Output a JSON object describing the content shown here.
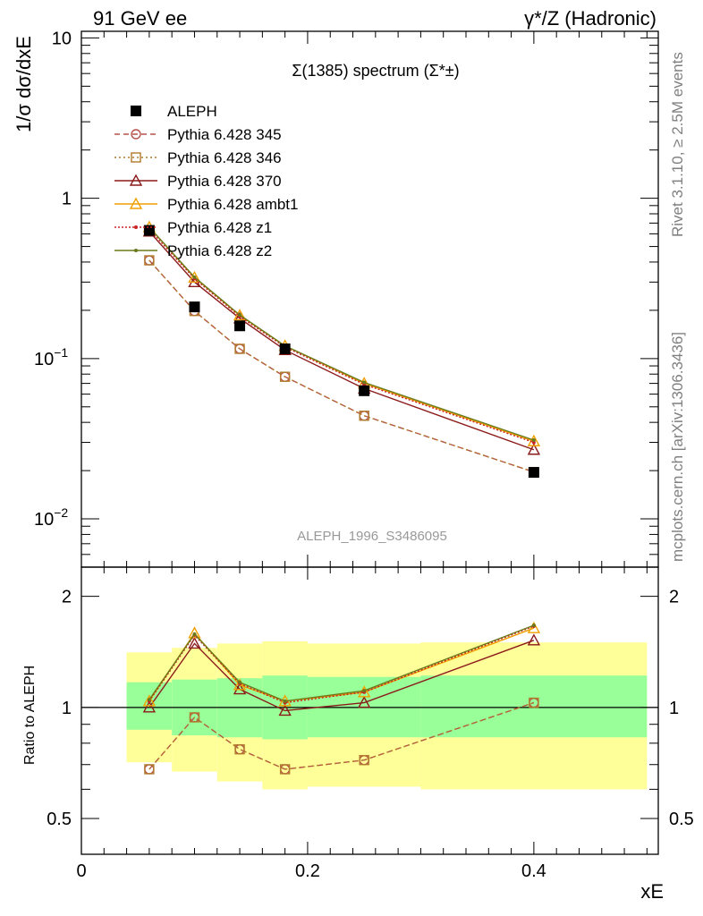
{
  "header": {
    "left": "91 GeV ee",
    "right": "γ*/Z (Hadronic)"
  },
  "side_labels": {
    "rivet": "Rivet 3.1.10, ≥ 2.5M events",
    "site": "mcplots.cern.ch [arXiv:1306.3436]"
  },
  "chart_data": [
    {
      "type": "line",
      "title": "Σ(1385) spectrum (Σ*±)",
      "watermark": "ALEPH_1996_S3486095",
      "ylabel": "1/σ dσ/dxE",
      "yscale": "log",
      "ylim": [
        0.005,
        11
      ],
      "xlim": [
        0,
        0.51
      ],
      "yticks": [
        {
          "v": 10,
          "t": "10"
        },
        {
          "v": 1,
          "t": "1"
        },
        {
          "v": 0.1,
          "t": "10",
          "sup": "−1"
        },
        {
          "v": 0.01,
          "t": "10",
          "sup": "−2"
        }
      ],
      "legend_position": "top-left",
      "data": {
        "name": "ALEPH",
        "x": [
          0.06,
          0.1,
          0.14,
          0.18,
          0.25,
          0.4
        ],
        "y": [
          0.63,
          0.21,
          0.16,
          0.115,
          0.063,
          0.0195
        ]
      },
      "series": [
        {
          "name": "Pythia 6.428 345",
          "color": "#b5524c",
          "dash": "6,4",
          "marker": "circle",
          "x": [
            0.06,
            0.1,
            0.14,
            0.18,
            0.25,
            0.4
          ],
          "y": [
            0.41,
            0.198,
            0.115,
            0.077,
            0.044,
            0.0196
          ]
        },
        {
          "name": "Pythia 6.428 346",
          "color": "#b07a2a",
          "dash": "2,3",
          "marker": "square",
          "x": [
            0.06,
            0.1,
            0.14,
            0.18,
            0.25,
            0.4
          ],
          "y": [
            0.41,
            0.198,
            0.115,
            0.077,
            0.044,
            0.0196
          ]
        },
        {
          "name": "Pythia 6.428 370",
          "color": "#8b1a1a",
          "dash": "",
          "marker": "triangle",
          "x": [
            0.06,
            0.1,
            0.14,
            0.18,
            0.25,
            0.4
          ],
          "y": [
            0.62,
            0.3,
            0.178,
            0.113,
            0.065,
            0.027
          ]
        },
        {
          "name": "Pythia 6.428 ambt1",
          "color": "#f0a000",
          "dash": "",
          "marker": "triangle",
          "x": [
            0.06,
            0.1,
            0.14,
            0.18,
            0.25,
            0.4
          ],
          "y": [
            0.66,
            0.32,
            0.186,
            0.12,
            0.07,
            0.0305
          ]
        },
        {
          "name": "Pythia 6.428 z1",
          "color": "#cc2222",
          "dash": "2,2",
          "marker": "dot",
          "x": [
            0.06,
            0.1,
            0.14,
            0.18,
            0.25,
            0.4
          ],
          "y": [
            0.64,
            0.315,
            0.183,
            0.118,
            0.069,
            0.03
          ]
        },
        {
          "name": "Pythia 6.428 z2",
          "color": "#6b7a1a",
          "dash": "",
          "marker": "dot",
          "x": [
            0.06,
            0.1,
            0.14,
            0.18,
            0.25,
            0.4
          ],
          "y": [
            0.66,
            0.322,
            0.187,
            0.12,
            0.071,
            0.031
          ]
        }
      ]
    },
    {
      "type": "line",
      "ylabel": "Ratio to ALEPH",
      "xlabel": "xE",
      "yscale": "log",
      "ylim": [
        0.4,
        2.4
      ],
      "xlim": [
        0,
        0.51
      ],
      "yticks": [
        {
          "v": 0.5,
          "t": "0.5"
        },
        {
          "v": 1,
          "t": "1"
        },
        {
          "v": 2,
          "t": "2"
        }
      ],
      "xticks": [
        {
          "v": 0,
          "t": "0"
        },
        {
          "v": 0.2,
          "t": "0.2"
        },
        {
          "v": 0.4,
          "t": "0.4"
        }
      ],
      "bands": {
        "edges": [
          0.04,
          0.08,
          0.12,
          0.16,
          0.2,
          0.3,
          0.5
        ],
        "yellow_lo": [
          0.71,
          0.67,
          0.63,
          0.6,
          0.61,
          0.6
        ],
        "yellow_hi": [
          1.41,
          1.45,
          1.49,
          1.51,
          1.49,
          1.5
        ],
        "green_lo": [
          0.87,
          0.84,
          0.83,
          0.82,
          0.83,
          0.83
        ],
        "green_hi": [
          1.17,
          1.19,
          1.2,
          1.22,
          1.21,
          1.22
        ]
      },
      "series": [
        {
          "name": "Pythia 6.428 345",
          "x": [
            0.06,
            0.1,
            0.14,
            0.18,
            0.25,
            0.4
          ],
          "y": [
            0.68,
            0.94,
            0.77,
            0.68,
            0.72,
            1.03
          ]
        },
        {
          "name": "Pythia 6.428 346",
          "x": [
            0.06,
            0.1,
            0.14,
            0.18,
            0.25,
            0.4
          ],
          "y": [
            0.68,
            0.94,
            0.77,
            0.68,
            0.72,
            1.03
          ]
        },
        {
          "name": "Pythia 6.428 370",
          "x": [
            0.06,
            0.1,
            0.14,
            0.18,
            0.25,
            0.4
          ],
          "y": [
            1.0,
            1.49,
            1.12,
            0.98,
            1.03,
            1.52
          ]
        },
        {
          "name": "Pythia 6.428 ambt1",
          "x": [
            0.06,
            0.1,
            0.14,
            0.18,
            0.25,
            0.4
          ],
          "y": [
            1.04,
            1.59,
            1.15,
            1.04,
            1.1,
            1.64
          ]
        },
        {
          "name": "Pythia 6.428 z1",
          "x": [
            0.06,
            0.1,
            0.14,
            0.18,
            0.25,
            0.4
          ],
          "y": [
            1.04,
            1.57,
            1.16,
            1.03,
            1.1,
            1.66
          ]
        },
        {
          "name": "Pythia 6.428 z2",
          "x": [
            0.06,
            0.1,
            0.14,
            0.18,
            0.25,
            0.4
          ],
          "y": [
            1.05,
            1.58,
            1.17,
            1.04,
            1.11,
            1.67
          ]
        }
      ]
    }
  ]
}
